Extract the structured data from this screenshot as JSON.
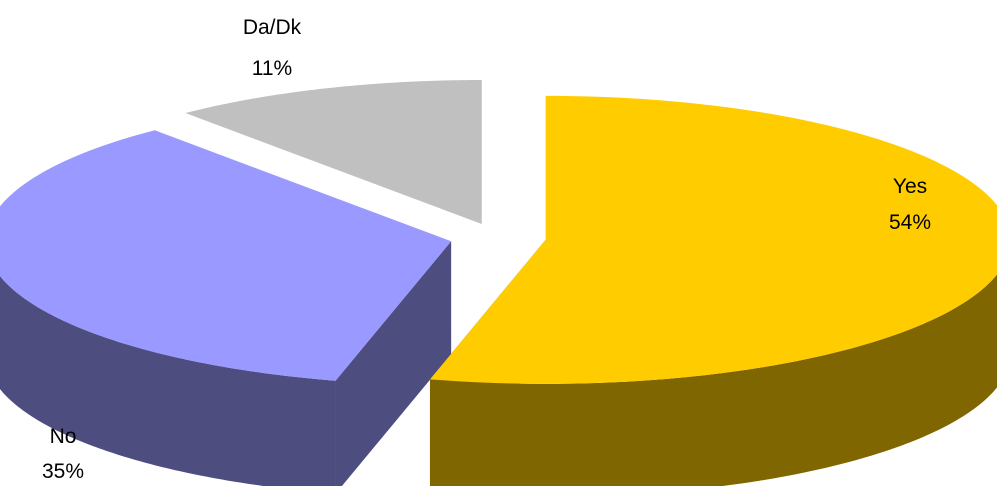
{
  "chart_data": {
    "type": "pie",
    "style": "3d-exploded",
    "title": "",
    "slices": [
      {
        "label": "Yes",
        "value": 54,
        "value_label": "54%",
        "color": "#FFCC00",
        "side_color": "#806600"
      },
      {
        "label": "No",
        "value": 35,
        "value_label": "35%",
        "color": "#9999FF",
        "side_color": "#4D4D80"
      },
      {
        "label": "Da/Dk",
        "value": 11,
        "value_label": "11%",
        "color": "#C0C0C0",
        "side_color": "#606060"
      }
    ],
    "legend": "none"
  }
}
